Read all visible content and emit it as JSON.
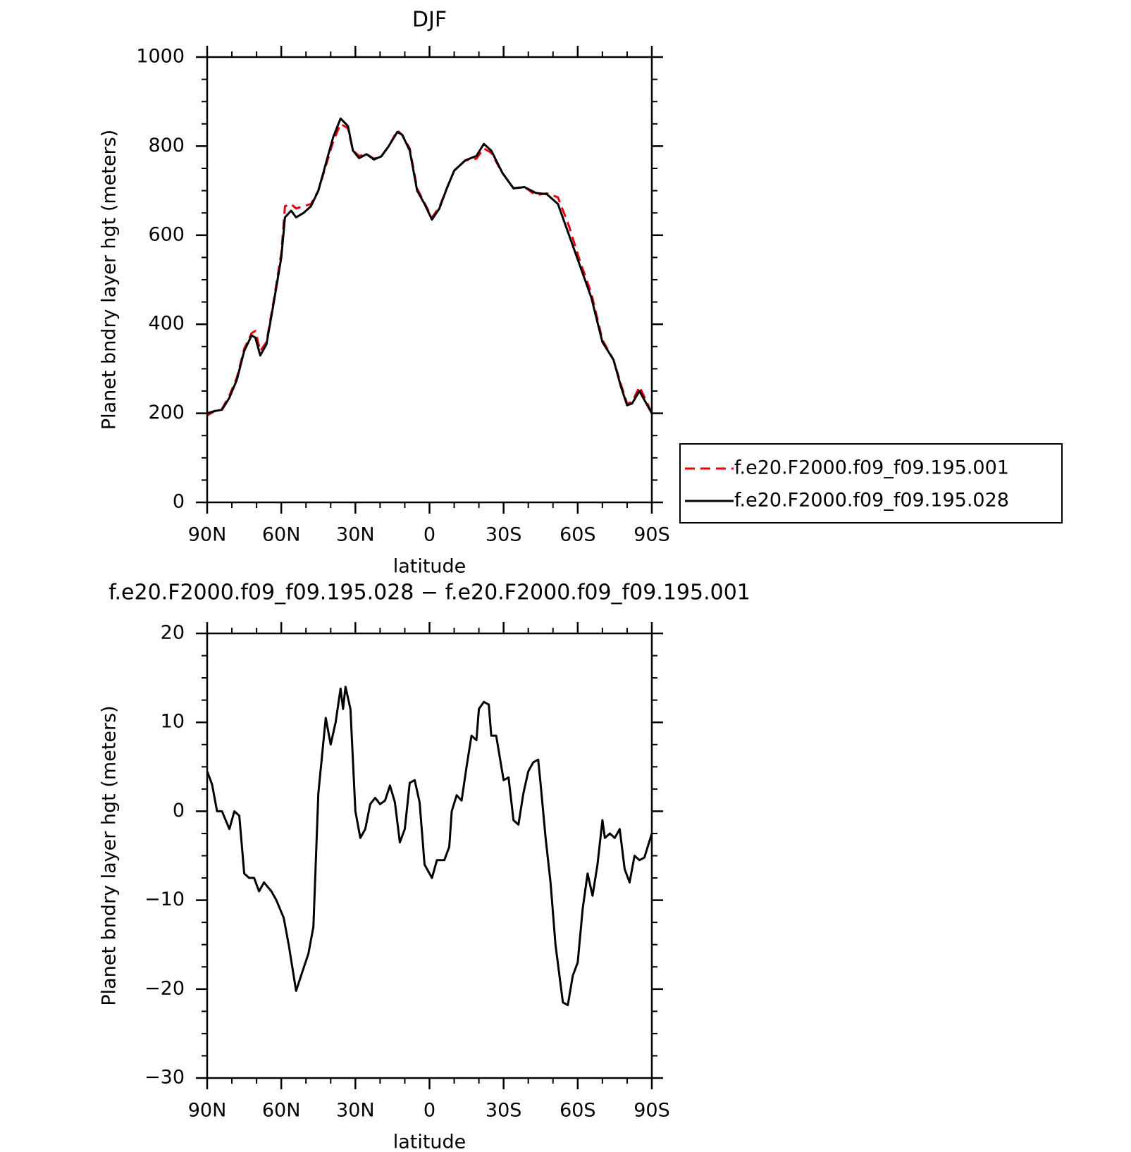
{
  "chart_data": [
    {
      "type": "line",
      "title": "DJF",
      "x_label": "latitude",
      "y_label": "Planet bndry layer hgt (meters)",
      "x": [
        90,
        87,
        84,
        81,
        78,
        75,
        72,
        70.5,
        68.5,
        66,
        63,
        60,
        58.5,
        56,
        54,
        51,
        48,
        45,
        42,
        39,
        36,
        33,
        31,
        28.5,
        25.5,
        22.5,
        19.5,
        16.5,
        13,
        11,
        8,
        5,
        2,
        -1,
        -4,
        -7,
        -10,
        -14.5,
        -19,
        -22,
        -25,
        -29.5,
        -34,
        -38.5,
        -43,
        -47.5,
        -52,
        -56.5,
        -61,
        -65.5,
        -70,
        -74.5,
        -77.5,
        -80,
        -82,
        -85,
        -88,
        -90
      ],
      "series": [
        {
          "name": "f.e20.F2000.f09_f09.195.001",
          "color": "#e8000b",
          "style": "dashed",
          "values": [
            195,
            205,
            210,
            240,
            280,
            345,
            380,
            385,
            340,
            360,
            455,
            560,
            665,
            670,
            660,
            665,
            670,
            700,
            755,
            810,
            850,
            840,
            790,
            778,
            782,
            772,
            777,
            800,
            835,
            825,
            795,
            705,
            672,
            640,
            663,
            705,
            745,
            768,
            772,
            795,
            785,
            740,
            706,
            708,
            690,
            694,
            685,
            620,
            540,
            470,
            365,
            320,
            265,
            222,
            225,
            260,
            225,
            200
          ]
        },
        {
          "name": "f.e20.F2000.f09_f09.195.028",
          "color": "#000000",
          "style": "solid",
          "values": [
            200,
            205,
            208,
            235,
            275,
            340,
            375,
            370,
            330,
            355,
            450,
            550,
            640,
            655,
            640,
            650,
            665,
            700,
            760,
            820,
            862,
            845,
            790,
            773,
            782,
            770,
            777,
            800,
            832,
            825,
            790,
            700,
            670,
            635,
            660,
            705,
            745,
            768,
            778,
            805,
            790,
            740,
            705,
            708,
            695,
            692,
            670,
            600,
            530,
            460,
            360,
            320,
            260,
            218,
            222,
            250,
            220,
            200
          ]
        }
      ],
      "xlim": [
        90,
        -90
      ],
      "xticks": [
        {
          "value": 90,
          "label": "90N"
        },
        {
          "value": 60,
          "label": "60N"
        },
        {
          "value": 30,
          "label": "30N"
        },
        0,
        {
          "value": -30,
          "label": "30S"
        },
        {
          "value": -60,
          "label": "60S"
        },
        {
          "value": -90,
          "label": "90S"
        }
      ],
      "ylim": [
        0,
        1000
      ],
      "yticks": [
        0,
        200,
        400,
        600,
        800,
        1000
      ],
      "legend": "right"
    },
    {
      "type": "line",
      "title": "f.e20.F2000.f09_f09.195.028 − f.e20.F2000.f09_f09.195.001",
      "x_label": "latitude",
      "y_label": "Planet bndry layer hgt (meters)",
      "x": [
        90,
        88,
        86,
        84,
        81,
        79,
        77,
        75,
        73,
        71,
        69,
        67,
        64,
        62,
        59,
        57,
        54,
        52,
        49,
        47,
        45,
        42,
        40,
        38,
        36,
        35,
        34,
        32,
        30,
        28,
        26,
        24,
        22,
        20,
        18,
        16,
        14,
        12,
        10,
        8,
        6,
        4,
        2,
        0,
        -1,
        -3,
        -6,
        -8,
        -9,
        -11,
        -13,
        -15,
        -17,
        -19,
        -20,
        -22,
        -24,
        -25,
        -27,
        -30,
        -32,
        -34,
        -36,
        -38,
        -40,
        -42,
        -44,
        -45,
        -47,
        -49,
        -51,
        -54,
        -56,
        -58,
        -60,
        -62,
        -64,
        -66,
        -68,
        -70,
        -71,
        -73,
        -75,
        -77,
        -79,
        -81,
        -83,
        -85,
        -87,
        -90
      ],
      "series": [
        {
          "color": "#000000",
          "style": "solid",
          "values": [
            4.5,
            3,
            0,
            0,
            -2,
            0,
            -0.5,
            -7,
            -7.5,
            -7.5,
            -9,
            -8,
            -9,
            -10,
            -12,
            -15,
            -20.2,
            -18.5,
            -16,
            -13,
            2,
            10.5,
            7.5,
            10,
            13.8,
            11.5,
            14,
            11.5,
            0,
            -3,
            -2,
            0.8,
            1.5,
            0.8,
            1.2,
            2.9,
            1,
            -3.5,
            -2,
            3.2,
            3.5,
            1,
            -6,
            -7,
            -7.5,
            -5.5,
            -5.5,
            -4,
            0,
            1.8,
            1.2,
            5,
            8.5,
            8,
            11.5,
            12.3,
            12,
            8.5,
            8.5,
            3.5,
            3.8,
            -1,
            -1.5,
            2,
            4.5,
            5.5,
            5.8,
            3,
            -3,
            -8,
            -15,
            -21.5,
            -21.8,
            -18.5,
            -17,
            -11,
            -7,
            -9.5,
            -6,
            -1,
            -3,
            -2.5,
            -3,
            -2,
            -6.5,
            -8,
            -5,
            -5.5,
            -5.2,
            -2.5
          ]
        }
      ],
      "xlim": [
        90,
        -90
      ],
      "xticks": [
        {
          "value": 90,
          "label": "90N"
        },
        {
          "value": 60,
          "label": "60N"
        },
        {
          "value": 30,
          "label": "30N"
        },
        0,
        {
          "value": -30,
          "label": "30S"
        },
        {
          "value": -60,
          "label": "60S"
        },
        {
          "value": -90,
          "label": "90S"
        }
      ],
      "ylim": [
        -30,
        20
      ],
      "yticks": [
        {
          "value": -30,
          "label": "−30"
        },
        {
          "value": -20,
          "label": "−20"
        },
        {
          "value": -10,
          "label": "−10"
        },
        0,
        10,
        20
      ]
    }
  ]
}
